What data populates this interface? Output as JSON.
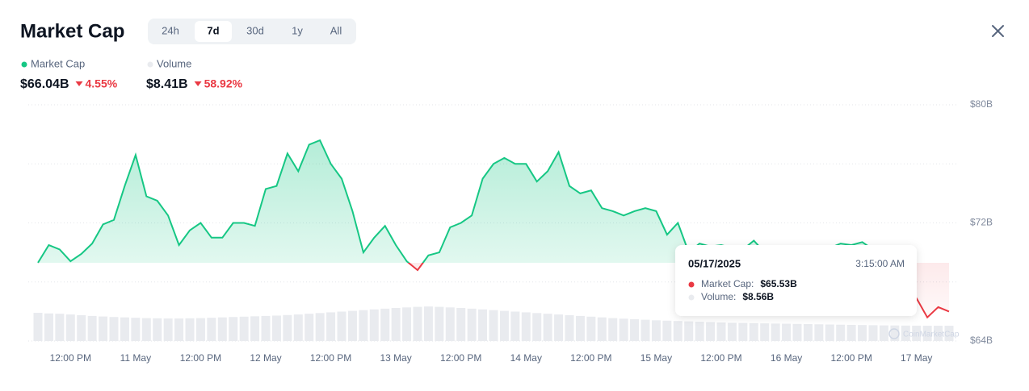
{
  "chart_data": {
    "type": "line",
    "title": "Market Cap",
    "ranges": [
      "24h",
      "7d",
      "30d",
      "1y",
      "All"
    ],
    "active_range": "7d",
    "stats": [
      {
        "value": "$66.04B",
        "change": "4.55%"
      },
      {
        "value": "$8.41B",
        "change": "58.92%"
      }
    ],
    "color_up": "#16c784",
    "color_down": "#ea3943",
    "series": [
      {
        "name": "Market Cap",
        "color": "#16c784",
        "values": [
          69.3,
          70.5,
          70.2,
          69.4,
          69.9,
          70.6,
          71.9,
          72.2,
          74.5,
          76.6,
          73.8,
          73.5,
          72.5,
          70.5,
          71.5,
          72.0,
          71.0,
          71.0,
          72.0,
          72.0,
          71.8,
          74.3,
          74.5,
          76.7,
          75.5,
          77.3,
          77.6,
          76.0,
          75.0,
          72.8,
          70.0,
          71.0,
          71.8,
          70.5,
          69.4,
          68.8,
          69.8,
          70.0,
          71.7,
          72.0,
          72.5,
          75.0,
          76.0,
          76.4,
          76.0,
          76.0,
          74.8,
          75.5,
          76.8,
          74.5,
          74.0,
          74.2,
          73.0,
          72.8,
          72.5,
          72.8,
          73.0,
          72.8,
          71.2,
          72.0,
          70.0,
          70.6,
          70.4,
          70.5,
          70.3,
          70.2,
          70.8,
          70.0,
          69.8,
          69.6,
          69.5,
          69.7,
          69.9,
          70.3,
          70.6,
          70.5,
          70.7,
          70.2,
          69.0,
          68.2,
          67.5,
          66.9,
          65.6,
          66.3,
          66.0
        ]
      },
      {
        "name": "Volume",
        "color": "#e9ebef",
        "axis": "y2",
        "values": [
          15.5,
          15.2,
          15.0,
          14.6,
          14.2,
          13.8,
          13.5,
          13.2,
          13.0,
          12.8,
          12.6,
          12.5,
          12.4,
          12.4,
          12.5,
          12.6,
          12.8,
          13.0,
          13.2,
          13.4,
          13.6,
          13.8,
          14.0,
          14.3,
          14.6,
          15.0,
          15.4,
          15.8,
          16.2,
          16.6,
          17.0,
          17.4,
          17.8,
          18.2,
          18.5,
          18.8,
          19.0,
          18.8,
          18.5,
          18.2,
          17.8,
          17.4,
          17.0,
          16.6,
          16.2,
          15.8,
          15.4,
          15.0,
          14.6,
          14.2,
          13.8,
          13.4,
          13.0,
          12.6,
          12.3,
          12.0,
          11.7,
          11.4,
          11.2,
          11.0,
          10.8,
          10.6,
          10.4,
          10.2,
          10.0,
          9.9,
          9.8,
          9.7,
          9.6,
          9.5,
          9.4,
          9.3,
          9.2,
          9.1,
          9.0,
          8.9,
          8.8,
          8.7,
          8.6,
          8.56,
          8.5,
          8.45,
          8.41,
          8.41,
          8.4
        ]
      }
    ],
    "ylim": [
      64,
      80
    ],
    "yticks": [
      {
        "value": 80,
        "label": "$80B"
      },
      {
        "value": 72,
        "label": "$72B"
      },
      {
        "value": 64,
        "label": "$64B"
      }
    ],
    "minor_yticks": [
      76,
      68
    ],
    "y2lim": [
      0,
      130
    ],
    "xticks": [
      {
        "value": 3,
        "label": "12:00 PM"
      },
      {
        "value": 9,
        "label": "11 May"
      },
      {
        "value": 15,
        "label": "12:00 PM"
      },
      {
        "value": 21,
        "label": "12 May"
      },
      {
        "value": 27,
        "label": "12:00 PM"
      },
      {
        "value": 33,
        "label": "13 May"
      },
      {
        "value": 39,
        "label": "12:00 PM"
      },
      {
        "value": 45,
        "label": "14 May"
      },
      {
        "value": 51,
        "label": "12:00 PM"
      },
      {
        "value": 57,
        "label": "15 May"
      },
      {
        "value": 63,
        "label": "12:00 PM"
      },
      {
        "value": 69,
        "label": "16 May"
      },
      {
        "value": 75,
        "label": "12:00 PM"
      },
      {
        "value": 81,
        "label": "17 May"
      }
    ],
    "grid": true,
    "watermark": "CoinMarketCap",
    "tooltip": {
      "date": "05/17/2025",
      "time": "3:15:00 AM",
      "rows": [
        {
          "label": "Market Cap:",
          "value": "$65.53B"
        },
        {
          "label": "Volume:",
          "value": "$8.56B"
        }
      ]
    }
  }
}
